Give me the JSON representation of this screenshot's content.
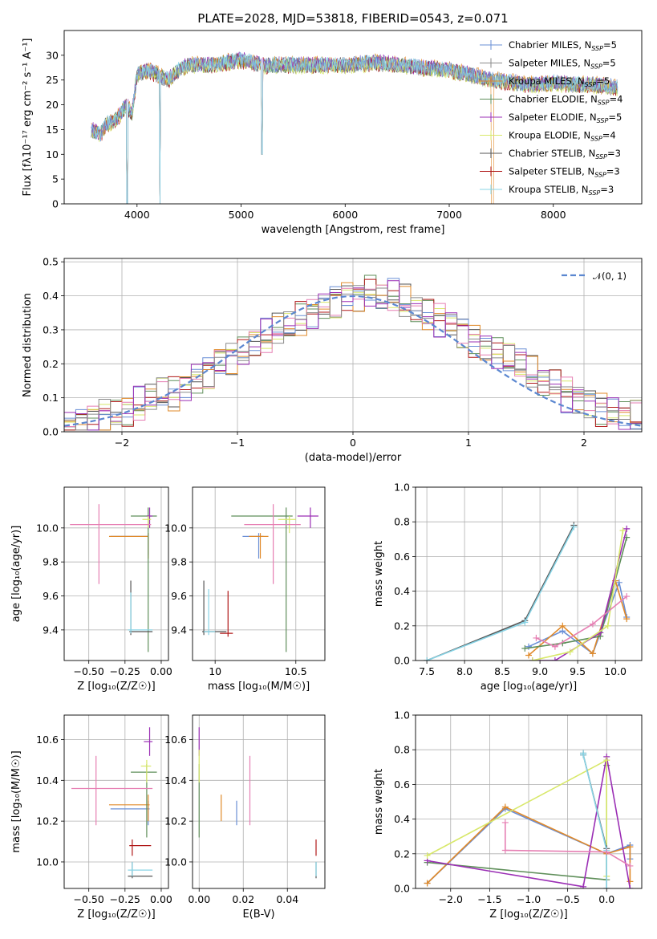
{
  "colors": [
    "#6a8fd6",
    "#8a8a8a",
    "#e08a2a",
    "#5f8f5a",
    "#9b2fb5",
    "#d8e86a",
    "#555555",
    "#b01818",
    "#88d4e6",
    "#e67fb3"
  ],
  "chart_data": [
    {
      "type": "line",
      "title": "PLATE=2028, MJD=53818, FIBERID=0543, z=0.071",
      "xlabel": "wavelength [Angstrom, rest frame]",
      "ylabel": "Flux [fλ10⁻¹⁷ erg cm⁻² s⁻¹ A⁻¹]",
      "xlim": [
        3300,
        8850
      ],
      "ylim": [
        0,
        35
      ],
      "xticks": [
        "4000",
        "5000",
        "6000",
        "7000",
        "8000"
      ],
      "yticks": [
        "0",
        "5",
        "10",
        "15",
        "20",
        "25",
        "30"
      ],
      "grid": false,
      "legend": "upper-right",
      "series_names": [
        "Chabrier MILES, N_SSP=5",
        "Salpeter MILES, N_SSP=5",
        "Kroupa MILES, N_SSP=5",
        "Chabrier ELODIE, N_SSP=4",
        "Salpeter ELODIE, N_SSP=5",
        "Kroupa ELODIE, N_SSP=4",
        "Chabrier STELIB, N_SSP=3",
        "Salpeter STELIB, N_SSP=3",
        "Kroupa STELIB, N_SSP=3"
      ],
      "legend_labels": [
        {
          "pre": "Chabrier MILES, N",
          "sub": "SSP",
          "post": "=5"
        },
        {
          "pre": "Salpeter MILES, N",
          "sub": "SSP",
          "post": "=5"
        },
        {
          "pre": "Kroupa MILES, N",
          "sub": "SSP",
          "post": "=5"
        },
        {
          "pre": "Chabrier ELODIE, N",
          "sub": "SSP",
          "post": "=4"
        },
        {
          "pre": "Salpeter ELODIE, N",
          "sub": "SSP",
          "post": "=5"
        },
        {
          "pre": "Kroupa ELODIE, N",
          "sub": "SSP",
          "post": "=4"
        },
        {
          "pre": "Chabrier STELIB, N",
          "sub": "SSP",
          "post": "=3"
        },
        {
          "pre": "Salpeter STELIB, N",
          "sub": "SSP",
          "post": "=3"
        },
        {
          "pre": "Kroupa STELIB, N",
          "sub": "SSP",
          "post": "=3"
        }
      ],
      "spectrum_continuum": {
        "x": [
          3550,
          3650,
          3700,
          3800,
          3900,
          3950,
          4000,
          4100,
          4200,
          4300,
          4400,
          4500,
          4700,
          5000,
          5200,
          5500,
          5800,
          6000,
          6300,
          6500,
          6700,
          7000,
          7200,
          7400,
          7600,
          7800,
          8000,
          8200,
          8400,
          8600
        ],
        "y": [
          15,
          14,
          16,
          17,
          20,
          18,
          26,
          27,
          26,
          25,
          27,
          28,
          28,
          29,
          28,
          28,
          28,
          28,
          28.5,
          28,
          27.5,
          27,
          26,
          25,
          24.5,
          24,
          24.5,
          24,
          24,
          23.5
        ]
      }
    },
    {
      "type": "bar",
      "xlabel": "(data-model)/error",
      "ylabel": "Normed distribution",
      "xlim": [
        -2.5,
        2.5
      ],
      "ylim": [
        0,
        0.51
      ],
      "xticks": [
        "−2",
        "−1",
        "0",
        "1",
        "2"
      ],
      "yticks": [
        "0.0",
        "0.1",
        "0.2",
        "0.3",
        "0.4",
        "0.5"
      ],
      "grid": true,
      "legend": "upper-right",
      "legend_label": "𝒩(0, 1)",
      "reference_curve": "normal(0,1)",
      "bin_width": 0.1,
      "hist_mean": [
        0.02,
        0.03,
        0.04,
        0.05,
        0.05,
        0.06,
        0.08,
        0.1,
        0.11,
        0.11,
        0.13,
        0.16,
        0.18,
        0.21,
        0.22,
        0.23,
        0.26,
        0.28,
        0.3,
        0.31,
        0.33,
        0.35,
        0.37,
        0.39,
        0.4,
        0.4,
        0.41,
        0.39,
        0.4,
        0.38,
        0.36,
        0.34,
        0.33,
        0.32,
        0.3,
        0.27,
        0.25,
        0.23,
        0.21,
        0.2,
        0.17,
        0.15,
        0.14,
        0.11,
        0.1,
        0.09,
        0.07,
        0.06,
        0.05,
        0.04
      ]
    },
    {
      "type": "scatter",
      "xlabel": "Z [log₁₀(Z/Z☉)]",
      "ylabel": "age  [log₁₀(age/yr)]",
      "xlim": [
        -0.67,
        0.05
      ],
      "ylim": [
        9.22,
        10.24
      ],
      "xticks": [
        "−0.50",
        "−0.25",
        "0.00"
      ],
      "yticks": [
        "9.4",
        "9.6",
        "9.8",
        "10.0"
      ],
      "grid": true,
      "points": [
        {
          "x": -0.09,
          "y": 9.95,
          "xlo": -0.35,
          "xhi": -0.09,
          "ylo": 9.84,
          "yhi": 9.97,
          "color": 0
        },
        {
          "x": -0.09,
          "y": 9.95,
          "xlo": -0.36,
          "xhi": -0.09,
          "ylo": 9.82,
          "yhi": 9.97,
          "color": 2
        },
        {
          "x": -0.09,
          "y": 10.07,
          "xlo": -0.21,
          "xhi": -0.03,
          "ylo": 9.27,
          "yhi": 10.12,
          "color": 3
        },
        {
          "x": -0.08,
          "y": 10.07,
          "xlo": -0.1,
          "xhi": -0.06,
          "ylo": 10.0,
          "yhi": 10.12,
          "color": 4
        },
        {
          "x": -0.09,
          "y": 10.05,
          "xlo": -0.13,
          "xhi": -0.07,
          "ylo": 10.0,
          "yhi": 10.07,
          "color": 5
        },
        {
          "x": -0.21,
          "y": 9.39,
          "xlo": -0.22,
          "xhi": -0.06,
          "ylo": 9.37,
          "yhi": 9.69,
          "color": 6
        },
        {
          "x": -0.21,
          "y": 9.4,
          "xlo": -0.23,
          "xhi": -0.06,
          "ylo": 9.38,
          "yhi": 9.62,
          "color": 8
        },
        {
          "x": -0.43,
          "y": 10.02,
          "xlo": -0.63,
          "xhi": -0.07,
          "ylo": 9.67,
          "yhi": 10.14,
          "color": 9
        }
      ]
    },
    {
      "type": "scatter",
      "xlabel": "mass [log₁₀(M/M☉)]",
      "ylabel": "",
      "xlim": [
        9.86,
        10.68
      ],
      "ylim": [
        9.22,
        10.24
      ],
      "xticks": [
        "10",
        "10.5"
      ],
      "yticks": [
        "9.4",
        "9.6",
        "9.8",
        "10.0"
      ],
      "grid": true,
      "points": [
        {
          "x": 10.27,
          "y": 9.95,
          "xlo": 10.17,
          "xhi": 10.3,
          "ylo": 9.82,
          "yhi": 9.97,
          "color": 0
        },
        {
          "x": 10.28,
          "y": 9.95,
          "xlo": 10.21,
          "xhi": 10.33,
          "ylo": 9.82,
          "yhi": 9.97,
          "color": 2
        },
        {
          "x": 10.44,
          "y": 10.07,
          "xlo": 10.1,
          "xhi": 10.48,
          "ylo": 9.27,
          "yhi": 10.12,
          "color": 3
        },
        {
          "x": 10.59,
          "y": 10.07,
          "xlo": 10.51,
          "xhi": 10.64,
          "ylo": 10.0,
          "yhi": 10.12,
          "color": 4
        },
        {
          "x": 10.46,
          "y": 10.05,
          "xlo": 10.39,
          "xhi": 10.5,
          "ylo": 9.97,
          "yhi": 10.07,
          "color": 5
        },
        {
          "x": 9.93,
          "y": 9.39,
          "xlo": 9.92,
          "xhi": 10.07,
          "ylo": 9.37,
          "yhi": 9.69,
          "color": 6
        },
        {
          "x": 10.08,
          "y": 9.38,
          "xlo": 10.03,
          "xhi": 10.11,
          "ylo": 9.36,
          "yhi": 9.63,
          "color": 7
        },
        {
          "x": 9.96,
          "y": 9.39,
          "xlo": 9.93,
          "xhi": 10.0,
          "ylo": 9.37,
          "yhi": 9.64,
          "color": 8
        },
        {
          "x": 10.36,
          "y": 10.02,
          "xlo": 10.18,
          "xhi": 10.53,
          "ylo": 9.67,
          "yhi": 10.14,
          "color": 9
        }
      ]
    },
    {
      "type": "line",
      "xlabel": "age  [log₁₀(age/yr)]",
      "ylabel": "mass weight",
      "xlim": [
        7.35,
        10.35
      ],
      "ylim": [
        0,
        1
      ],
      "xticks": [
        "7.5",
        "8.0",
        "8.5",
        "9.0",
        "9.5",
        "10.0"
      ],
      "yticks": [
        "0.0",
        "0.2",
        "0.4",
        "0.6",
        "0.8",
        "1.0"
      ],
      "grid": true,
      "series": [
        {
          "color": 0,
          "x": [
            8.85,
            9.3,
            9.7,
            10.05,
            10.15
          ],
          "y": [
            0.08,
            0.17,
            0.04,
            0.45,
            0.25
          ]
        },
        {
          "color": 2,
          "x": [
            8.85,
            9.3,
            9.7,
            10.0,
            10.15
          ],
          "y": [
            0.03,
            0.2,
            0.04,
            0.46,
            0.24
          ]
        },
        {
          "color": 3,
          "x": [
            8.8,
            9.3,
            9.8,
            10.15
          ],
          "y": [
            0.07,
            0.1,
            0.14,
            0.71
          ]
        },
        {
          "color": 4,
          "x": [
            8.9,
            9.2,
            9.8,
            10.15
          ],
          "y": [
            0.0,
            0.0,
            0.16,
            0.76
          ]
        },
        {
          "color": 5,
          "x": [
            8.9,
            9.4,
            9.9,
            10.1
          ],
          "y": [
            0.0,
            0.05,
            0.2,
            0.75
          ]
        },
        {
          "color": 6,
          "x": [
            7.5,
            8.8,
            9.45
          ],
          "y": [
            0.0,
            0.23,
            0.78
          ]
        },
        {
          "color": 8,
          "x": [
            7.5,
            8.8,
            9.45
          ],
          "y": [
            0.0,
            0.22,
            0.77
          ]
        },
        {
          "color": 9,
          "x": [
            8.95,
            9.2,
            9.7,
            10.15
          ],
          "y": [
            0.13,
            0.08,
            0.21,
            0.37
          ]
        }
      ]
    },
    {
      "type": "scatter",
      "xlabel": "Z [log₁₀(Z/Z☉)]",
      "ylabel": "mass [log₁₀(M/M☉)]",
      "xlim": [
        -0.67,
        0.05
      ],
      "ylim": [
        9.87,
        10.72
      ],
      "xticks": [
        "−0.50",
        "−0.25",
        "0.00"
      ],
      "yticks": [
        "10.0",
        "10.2",
        "10.4",
        "10.6"
      ],
      "grid": true,
      "points": [
        {
          "x": -0.09,
          "y": 10.26,
          "xlo": -0.35,
          "xhi": -0.08,
          "ylo": 10.18,
          "yhi": 10.3,
          "color": 0
        },
        {
          "x": -0.09,
          "y": 10.28,
          "xlo": -0.36,
          "xhi": -0.08,
          "ylo": 10.2,
          "yhi": 10.33,
          "color": 2
        },
        {
          "x": -0.1,
          "y": 10.44,
          "xlo": -0.21,
          "xhi": -0.03,
          "ylo": 10.12,
          "yhi": 10.48,
          "color": 3
        },
        {
          "x": -0.08,
          "y": 10.59,
          "xlo": -0.12,
          "xhi": -0.06,
          "ylo": 10.52,
          "yhi": 10.66,
          "color": 4
        },
        {
          "x": -0.1,
          "y": 10.47,
          "xlo": -0.14,
          "xhi": -0.07,
          "ylo": 10.39,
          "yhi": 10.5,
          "color": 5
        },
        {
          "x": -0.2,
          "y": 9.93,
          "xlo": -0.23,
          "xhi": -0.06,
          "ylo": 9.92,
          "yhi": 10.0,
          "color": 6
        },
        {
          "x": -0.2,
          "y": 10.08,
          "xlo": -0.22,
          "xhi": -0.07,
          "ylo": 10.03,
          "yhi": 10.11,
          "color": 7
        },
        {
          "x": -0.2,
          "y": 9.96,
          "xlo": -0.23,
          "xhi": -0.06,
          "ylo": 9.93,
          "yhi": 10.0,
          "color": 8
        },
        {
          "x": -0.45,
          "y": 10.36,
          "xlo": -0.62,
          "xhi": -0.06,
          "ylo": 10.18,
          "yhi": 10.52,
          "color": 9
        }
      ]
    },
    {
      "type": "scatter",
      "xlabel": "E(B-V)",
      "ylabel": "",
      "xlim": [
        -0.003,
        0.057
      ],
      "ylim": [
        9.87,
        10.72
      ],
      "xticks": [
        "0.00",
        "0.02",
        "0.04"
      ],
      "yticks": [
        "10.0",
        "10.2",
        "10.4",
        "10.6"
      ],
      "grid": true,
      "points": [
        {
          "x": 0.017,
          "y": 10.26,
          "ylo": 10.18,
          "yhi": 10.3,
          "color": 0
        },
        {
          "x": 0.01,
          "y": 10.28,
          "ylo": 10.2,
          "yhi": 10.33,
          "color": 2
        },
        {
          "x": 0.0,
          "y": 10.44,
          "ylo": 10.12,
          "yhi": 10.48,
          "color": 3
        },
        {
          "x": 0.0,
          "y": 10.59,
          "ylo": 10.52,
          "yhi": 10.66,
          "color": 4
        },
        {
          "x": 0.0,
          "y": 10.47,
          "ylo": 10.39,
          "yhi": 10.55,
          "color": 5
        },
        {
          "x": 0.053,
          "y": 9.93,
          "ylo": 9.92,
          "yhi": 10.0,
          "color": 6
        },
        {
          "x": 0.053,
          "y": 10.08,
          "ylo": 10.03,
          "yhi": 10.11,
          "color": 7
        },
        {
          "x": 0.053,
          "y": 9.96,
          "ylo": 9.93,
          "yhi": 10.0,
          "color": 8
        },
        {
          "x": 0.023,
          "y": 10.36,
          "ylo": 10.18,
          "yhi": 10.52,
          "color": 9
        }
      ]
    },
    {
      "type": "line",
      "xlabel": "Z [log₁₀(Z/Z☉)]",
      "ylabel": "mass weight",
      "xlim": [
        -2.45,
        0.45
      ],
      "ylim": [
        0,
        1
      ],
      "xticks": [
        "−2.0",
        "−1.5",
        "−1.0",
        "−0.5",
        "0.0"
      ],
      "yticks": [
        "0.0",
        "0.2",
        "0.4",
        "0.6",
        "0.8",
        "1.0"
      ],
      "grid": true,
      "series": [
        {
          "color": 0,
          "x": [
            -2.3,
            -1.3,
            0.0,
            0.3,
            0.3
          ],
          "y": [
            0.03,
            0.46,
            0.2,
            0.25,
            0.17
          ]
        },
        {
          "color": 2,
          "x": [
            -2.3,
            -1.3,
            0.0,
            0.3,
            0.3
          ],
          "y": [
            0.03,
            0.47,
            0.2,
            0.24,
            0.04
          ]
        },
        {
          "color": 3,
          "x": [
            -2.3,
            0.0,
            0.0
          ],
          "y": [
            0.15,
            0.05,
            0.71
          ]
        },
        {
          "color": 4,
          "x": [
            -2.3,
            -0.3,
            0.0,
            0.3
          ],
          "y": [
            0.16,
            0.01,
            0.76,
            0.0
          ]
        },
        {
          "color": 5,
          "x": [
            -2.3,
            0.0,
            0.0
          ],
          "y": [
            0.19,
            0.74,
            0.07
          ]
        },
        {
          "color": 6,
          "x": [
            -0.3,
            -0.3,
            0.0,
            0.0
          ],
          "y": [
            0.78,
            0.77,
            0.23,
            0.0
          ]
        },
        {
          "color": 8,
          "x": [
            -0.3,
            -0.3,
            0.0,
            0.0
          ],
          "y": [
            0.78,
            0.77,
            0.22,
            0.0
          ]
        },
        {
          "color": 9,
          "x": [
            -1.3,
            -1.3,
            0.0,
            0.3
          ],
          "y": [
            0.38,
            0.22,
            0.21,
            0.13
          ]
        }
      ]
    }
  ]
}
